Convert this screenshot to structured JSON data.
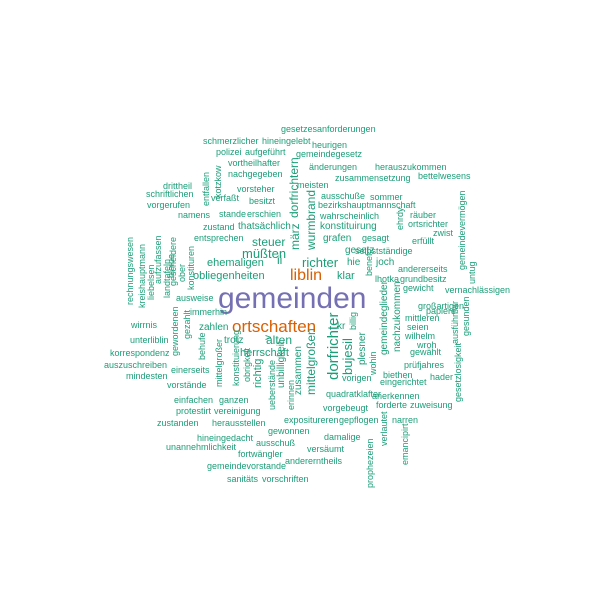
{
  "colors": {
    "primary": "#7570b3",
    "secondary": "#d95f02",
    "tertiary": "#1b9e77"
  },
  "words": [
    {
      "text": "gemeinden",
      "tier": "primary"
    },
    {
      "text": "ortschaften",
      "tier": "secondary"
    },
    {
      "text": "liblin",
      "tier": "secondary"
    },
    {
      "text": "gesetzesanforderungen",
      "tier": "tertiary"
    },
    {
      "text": "schmerzlicher",
      "tier": "tertiary"
    },
    {
      "text": "hineingelebt",
      "tier": "tertiary"
    },
    {
      "text": "heurigen",
      "tier": "tertiary"
    },
    {
      "text": "polizei",
      "tier": "tertiary"
    },
    {
      "text": "aufgeführt",
      "tier": "tertiary"
    },
    {
      "text": "gemeindegesetz",
      "tier": "tertiary"
    },
    {
      "text": "vortheilhafter",
      "tier": "tertiary"
    },
    {
      "text": "änderungen",
      "tier": "tertiary"
    },
    {
      "text": "herauszukommen",
      "tier": "tertiary"
    },
    {
      "text": "nachgegeben",
      "tier": "tertiary"
    },
    {
      "text": "zusammensetzung",
      "tier": "tertiary"
    },
    {
      "text": "bettelwesens",
      "tier": "tertiary"
    },
    {
      "text": "meisten",
      "tier": "tertiary"
    },
    {
      "text": "drittheil",
      "tier": "tertiary"
    },
    {
      "text": "vorsteher",
      "tier": "tertiary"
    },
    {
      "text": "ausschuße",
      "tier": "tertiary"
    },
    {
      "text": "sommer",
      "tier": "tertiary"
    },
    {
      "text": "schriftlichen",
      "tier": "tertiary"
    },
    {
      "text": "verfaßt",
      "tier": "tertiary"
    },
    {
      "text": "bezirkshauptmannschaft",
      "tier": "tertiary"
    },
    {
      "text": "besitzt",
      "tier": "tertiary"
    },
    {
      "text": "vorgerufen",
      "tier": "tertiary"
    },
    {
      "text": "wahrscheinlich",
      "tier": "tertiary"
    },
    {
      "text": "räuber",
      "tier": "tertiary"
    },
    {
      "text": "namens",
      "tier": "tertiary"
    },
    {
      "text": "stande",
      "tier": "tertiary"
    },
    {
      "text": "erschien",
      "tier": "tertiary"
    },
    {
      "text": "ortsrichter",
      "tier": "tertiary"
    },
    {
      "text": "zustand",
      "tier": "tertiary"
    },
    {
      "text": "thatsächlich",
      "tier": "tertiary"
    },
    {
      "text": "konstituirung",
      "tier": "tertiary"
    },
    {
      "text": "zwist",
      "tier": "tertiary"
    },
    {
      "text": "entsprechen",
      "tier": "tertiary"
    },
    {
      "text": "grafen",
      "tier": "tertiary"
    },
    {
      "text": "gesagt",
      "tier": "tertiary"
    },
    {
      "text": "erfüllt",
      "tier": "tertiary"
    },
    {
      "text": "steuer",
      "tier": "tertiary"
    },
    {
      "text": "müßten",
      "tier": "tertiary"
    },
    {
      "text": "ii",
      "tier": "tertiary"
    },
    {
      "text": "richter",
      "tier": "tertiary"
    },
    {
      "text": "gesetz",
      "tier": "tertiary"
    },
    {
      "text": "selbstständige",
      "tier": "tertiary"
    },
    {
      "text": "ehemaligen",
      "tier": "tertiary"
    },
    {
      "text": "hie",
      "tier": "tertiary"
    },
    {
      "text": "joch",
      "tier": "tertiary"
    },
    {
      "text": "andererseits",
      "tier": "tertiary"
    },
    {
      "text": "obliegenheiten",
      "tier": "tertiary"
    },
    {
      "text": "klar",
      "tier": "tertiary"
    },
    {
      "text": "lhotka",
      "tier": "tertiary"
    },
    {
      "text": "grundbesitz",
      "tier": "tertiary"
    },
    {
      "text": "ausweise",
      "tier": "tertiary"
    },
    {
      "text": "großartigen",
      "tier": "tertiary"
    },
    {
      "text": "vernachlässigen",
      "tier": "tertiary"
    },
    {
      "text": "immerhin",
      "tier": "tertiary"
    },
    {
      "text": "papiere",
      "tier": "tertiary"
    },
    {
      "text": "gewicht",
      "tier": "tertiary"
    },
    {
      "text": "wirrnis",
      "tier": "tertiary"
    },
    {
      "text": "zahlen",
      "tier": "tertiary"
    },
    {
      "text": "kr",
      "tier": "tertiary"
    },
    {
      "text": "mittleren",
      "tier": "tertiary"
    },
    {
      "text": "unterliblin",
      "tier": "tertiary"
    },
    {
      "text": "alten",
      "tier": "tertiary"
    },
    {
      "text": "seien",
      "tier": "tertiary"
    },
    {
      "text": "trotz",
      "tier": "tertiary"
    },
    {
      "text": "wilhelm",
      "tier": "tertiary"
    },
    {
      "text": "korrespondenz",
      "tier": "tertiary"
    },
    {
      "text": "herrschaft",
      "tier": "tertiary"
    },
    {
      "text": "wroh",
      "tier": "tertiary"
    },
    {
      "text": "gewählt",
      "tier": "tertiary"
    },
    {
      "text": "auszuschreiben",
      "tier": "tertiary"
    },
    {
      "text": "mindesten",
      "tier": "tertiary"
    },
    {
      "text": "einerseits",
      "tier": "tertiary"
    },
    {
      "text": "vorigen",
      "tier": "tertiary"
    },
    {
      "text": "biethen",
      "tier": "tertiary"
    },
    {
      "text": "prüfjahres",
      "tier": "tertiary"
    },
    {
      "text": "vorstände",
      "tier": "tertiary"
    },
    {
      "text": "eingerichtet",
      "tier": "tertiary"
    },
    {
      "text": "hader",
      "tier": "tertiary"
    },
    {
      "text": "quadratklafter",
      "tier": "tertiary"
    },
    {
      "text": "einfachen",
      "tier": "tertiary"
    },
    {
      "text": "ganzen",
      "tier": "tertiary"
    },
    {
      "text": "vorgebeugt",
      "tier": "tertiary"
    },
    {
      "text": "anerkennen",
      "tier": "tertiary"
    },
    {
      "text": "protestirt",
      "tier": "tertiary"
    },
    {
      "text": "vereinigung",
      "tier": "tertiary"
    },
    {
      "text": "forderte",
      "tier": "tertiary"
    },
    {
      "text": "zuweisung",
      "tier": "tertiary"
    },
    {
      "text": "zustanden",
      "tier": "tertiary"
    },
    {
      "text": "herausstellen",
      "tier": "tertiary"
    },
    {
      "text": "expositureren",
      "tier": "tertiary"
    },
    {
      "text": "narren",
      "tier": "tertiary"
    },
    {
      "text": "gepflogen",
      "tier": "tertiary"
    },
    {
      "text": "gewonnen",
      "tier": "tertiary"
    },
    {
      "text": "hineingedacht",
      "tier": "tertiary"
    },
    {
      "text": "damalige",
      "tier": "tertiary"
    },
    {
      "text": "unannehmlichkeit",
      "tier": "tertiary"
    },
    {
      "text": "ausschuß",
      "tier": "tertiary"
    },
    {
      "text": "versäumt",
      "tier": "tertiary"
    },
    {
      "text": "fortwängler",
      "tier": "tertiary"
    },
    {
      "text": "gemeindevorstande",
      "tier": "tertiary"
    },
    {
      "text": "andererntheils",
      "tier": "tertiary"
    },
    {
      "text": "sanitäts",
      "tier": "tertiary"
    },
    {
      "text": "vorschriften",
      "tier": "tertiary"
    },
    {
      "text": "dorfrichter",
      "tier": "tertiary"
    },
    {
      "text": "dorfrichtern",
      "tier": "tertiary"
    },
    {
      "text": "wurmbrand",
      "tier": "tertiary"
    },
    {
      "text": "märz",
      "tier": "tertiary"
    },
    {
      "text": "bujesil",
      "tier": "tertiary"
    },
    {
      "text": "mittelgroßen",
      "tier": "tertiary"
    },
    {
      "text": "gemeindeglieder",
      "tier": "tertiary"
    },
    {
      "text": "nachzukommen",
      "tier": "tertiary"
    },
    {
      "text": "zusammen",
      "tier": "tertiary"
    },
    {
      "text": "unbilligkeit",
      "tier": "tertiary"
    },
    {
      "text": "richtig",
      "tier": "tertiary"
    },
    {
      "text": "konstituierung",
      "tier": "tertiary"
    },
    {
      "text": "mittelgroßer",
      "tier": "tertiary"
    },
    {
      "text": "obrigkeit",
      "tier": "tertiary"
    },
    {
      "text": "plesner",
      "tier": "tertiary"
    },
    {
      "text": "billig",
      "tier": "tertiary"
    },
    {
      "text": "wohin",
      "tier": "tertiary"
    },
    {
      "text": "benef",
      "tier": "tertiary"
    },
    {
      "text": "ehrdy",
      "tier": "tertiary"
    },
    {
      "text": "gemeindevermögen",
      "tier": "tertiary"
    },
    {
      "text": "untug",
      "tier": "tertiary"
    },
    {
      "text": "gesunden",
      "tier": "tertiary"
    },
    {
      "text": "ausführbar",
      "tier": "tertiary"
    },
    {
      "text": "gesetzlosigkeit",
      "tier": "tertiary"
    },
    {
      "text": "rechnungswesen",
      "tier": "tertiary"
    },
    {
      "text": "kreishauptmann",
      "tier": "tertiary"
    },
    {
      "text": "liebelsen",
      "tier": "tertiary"
    },
    {
      "text": "aufzufassen",
      "tier": "tertiary"
    },
    {
      "text": "landtafeln",
      "tier": "tertiary"
    },
    {
      "text": "gescheidere",
      "tier": "tertiary"
    },
    {
      "text": "konstituren",
      "tier": "tertiary"
    },
    {
      "text": "kotzkow",
      "tier": "tertiary"
    },
    {
      "text": "entfallen",
      "tier": "tertiary"
    },
    {
      "text": "bleibe",
      "tier": "tertiary"
    },
    {
      "text": "ober",
      "tier": "tertiary"
    },
    {
      "text": "gewordenen",
      "tier": "tertiary"
    },
    {
      "text": "gezahlt",
      "tier": "tertiary"
    },
    {
      "text": "behufe",
      "tier": "tertiary"
    },
    {
      "text": "ueberstände",
      "tier": "tertiary"
    },
    {
      "text": "erinnen",
      "tier": "tertiary"
    },
    {
      "text": "prophezeien",
      "tier": "tertiary"
    },
    {
      "text": "verlautet",
      "tier": "tertiary"
    },
    {
      "text": "emancipirt",
      "tier": "tertiary"
    },
    {
      "text": "v",
      "tier": "tertiary"
    }
  ]
}
